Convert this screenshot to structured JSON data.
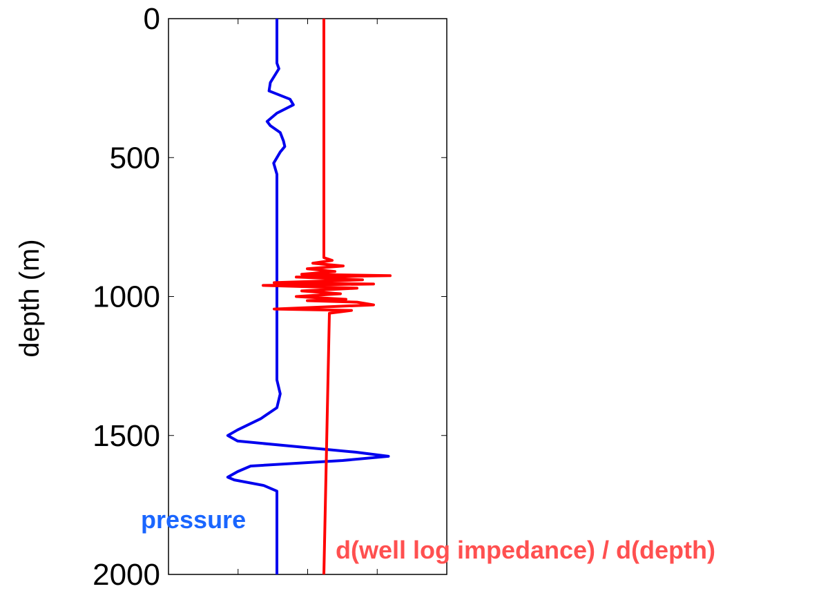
{
  "chart_data": {
    "type": "line",
    "ylabel": "depth (m)",
    "ylim": [
      0,
      2000
    ],
    "y_reversed": true,
    "yticks": [
      0,
      500,
      1000,
      1500,
      2000
    ],
    "yticklabels": [
      "0",
      "500",
      "1000",
      "1500",
      "2000"
    ],
    "grid": false,
    "x_tick_labels_shown": false,
    "series": [
      {
        "name": "pressure",
        "color": "#0000ee",
        "label_color": "#1a66ff",
        "depth": [
          0,
          160,
          180,
          230,
          260,
          290,
          310,
          340,
          370,
          385,
          410,
          440,
          460,
          480,
          520,
          560,
          700,
          900,
          1100,
          1300,
          1350,
          1400,
          1440,
          1480,
          1500,
          1520,
          1540,
          1560,
          1575,
          1590,
          1610,
          1630,
          1650,
          1660,
          1680,
          1700,
          1800,
          2000
        ],
        "value": [
          0,
          0.0,
          0.03,
          -0.1,
          -0.12,
          0.2,
          0.25,
          0.0,
          -0.15,
          -0.1,
          0.05,
          0.1,
          0.12,
          0.05,
          -0.05,
          0.0,
          0.0,
          0.0,
          0.0,
          0.0,
          0.05,
          0.0,
          -0.25,
          -0.6,
          -0.75,
          -0.6,
          0.3,
          1.2,
          1.7,
          1.0,
          -0.4,
          -0.6,
          -0.75,
          -0.65,
          -0.2,
          0.0,
          0.0,
          0.0
        ]
      },
      {
        "name": "d(well log impedance) / d(depth)",
        "color": "#ff0000",
        "label_color": "#ff5050",
        "depth": [
          0,
          860,
          870,
          880,
          890,
          900,
          910,
          920,
          925,
          930,
          940,
          950,
          955,
          960,
          970,
          980,
          990,
          1000,
          1010,
          1015,
          1020,
          1030,
          1040,
          1045,
          1050,
          1060,
          2000
        ],
        "value": [
          0,
          0,
          0.15,
          -0.2,
          0.35,
          -0.3,
          0.2,
          -0.4,
          1.2,
          -0.5,
          0.7,
          -0.9,
          0.9,
          -1.1,
          0.6,
          -0.4,
          0.3,
          -0.5,
          0.4,
          -0.3,
          0.6,
          0.9,
          -0.3,
          -0.9,
          0.5,
          0.1,
          0
        ]
      }
    ]
  }
}
